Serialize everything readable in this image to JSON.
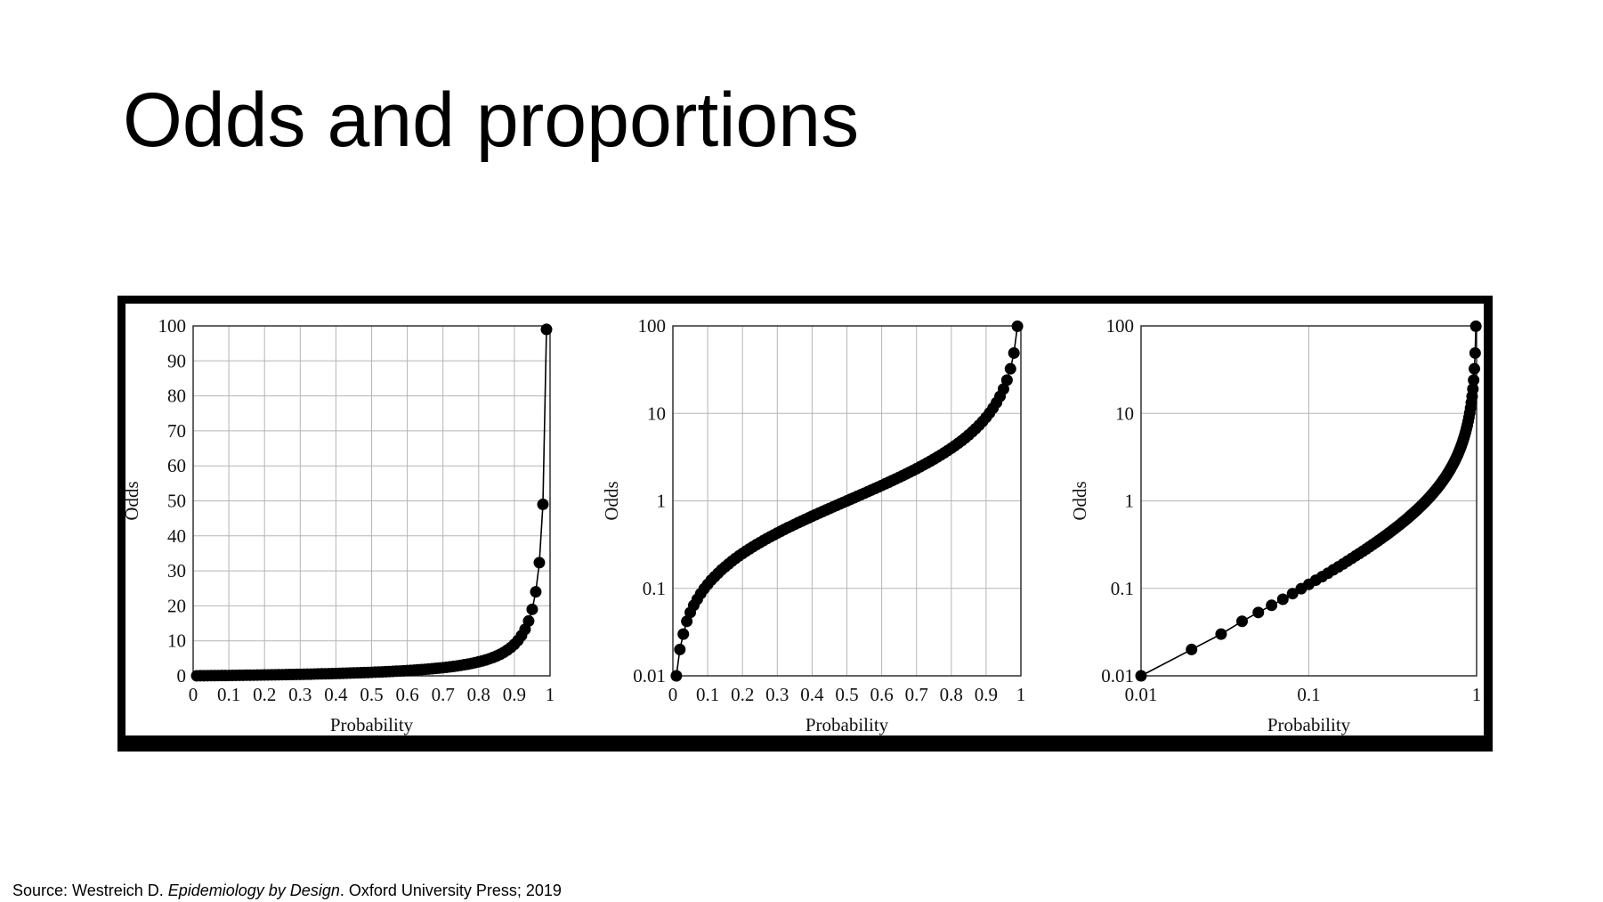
{
  "slide": {
    "title": "Odds and proportions"
  },
  "source": {
    "prefix": "Source: Westreich D. ",
    "book": "Epidemiology by Design",
    "suffix": ". Oxford University Press; 2019"
  },
  "chart_data": [
    {
      "type": "scatter",
      "xlabel": "Probability",
      "ylabel": "Odds",
      "xlim": [
        0,
        1
      ],
      "ylim": [
        0,
        100
      ],
      "yscale": "linear",
      "xscale": "linear",
      "grid": true,
      "xticks": [
        0,
        0.1,
        0.2,
        0.3,
        0.4,
        0.5,
        0.6,
        0.7,
        0.8,
        0.9,
        1
      ],
      "xtick_labels": [
        "0",
        "0.1",
        "0.2",
        "0.3",
        "0.4",
        "0.5",
        "0.6",
        "0.7",
        "0.8",
        "0.9",
        "1"
      ],
      "yticks": [
        0,
        10,
        20,
        30,
        40,
        50,
        60,
        70,
        80,
        90,
        100
      ],
      "ytick_labels": [
        "0",
        "10",
        "20",
        "30",
        "40",
        "50",
        "60",
        "70",
        "80",
        "90",
        "100"
      ],
      "series": [
        {
          "x": [
            0.01,
            0.02,
            0.03,
            0.04,
            0.05,
            0.06,
            0.07,
            0.08,
            0.09,
            0.1,
            0.11,
            0.12,
            0.13,
            0.14,
            0.15,
            0.16,
            0.17,
            0.18,
            0.19,
            0.2,
            0.21,
            0.22,
            0.23,
            0.24,
            0.25,
            0.26,
            0.27,
            0.28,
            0.29,
            0.3,
            0.31,
            0.32,
            0.33,
            0.34,
            0.35,
            0.36,
            0.37,
            0.38,
            0.39,
            0.4,
            0.41,
            0.42,
            0.43,
            0.44,
            0.45,
            0.46,
            0.47,
            0.48,
            0.49,
            0.5,
            0.51,
            0.52,
            0.53,
            0.54,
            0.55,
            0.56,
            0.57,
            0.58,
            0.59,
            0.6,
            0.61,
            0.62,
            0.63,
            0.64,
            0.65,
            0.66,
            0.67,
            0.68,
            0.69,
            0.7,
            0.71,
            0.72,
            0.73,
            0.74,
            0.75,
            0.76,
            0.77,
            0.78,
            0.79,
            0.8,
            0.81,
            0.82,
            0.83,
            0.84,
            0.85,
            0.86,
            0.87,
            0.88,
            0.89,
            0.9,
            0.91,
            0.92,
            0.93,
            0.94,
            0.95,
            0.96,
            0.97,
            0.98,
            0.99
          ],
          "y": [
            0.01,
            0.02,
            0.03,
            0.042,
            0.053,
            0.064,
            0.075,
            0.087,
            0.099,
            0.111,
            0.124,
            0.136,
            0.149,
            0.163,
            0.176,
            0.19,
            0.205,
            0.22,
            0.235,
            0.25,
            0.266,
            0.282,
            0.299,
            0.316,
            0.333,
            0.351,
            0.37,
            0.389,
            0.408,
            0.429,
            0.449,
            0.471,
            0.493,
            0.515,
            0.538,
            0.563,
            0.587,
            0.613,
            0.639,
            0.667,
            0.695,
            0.724,
            0.754,
            0.786,
            0.818,
            0.852,
            0.887,
            0.923,
            0.961,
            1.0,
            1.041,
            1.083,
            1.128,
            1.174,
            1.222,
            1.273,
            1.326,
            1.381,
            1.439,
            1.5,
            1.564,
            1.632,
            1.703,
            1.778,
            1.857,
            1.941,
            2.03,
            2.125,
            2.226,
            2.333,
            2.448,
            2.571,
            2.704,
            2.846,
            3.0,
            3.167,
            3.348,
            3.545,
            3.762,
            4.0,
            4.263,
            4.556,
            4.882,
            5.25,
            5.667,
            6.143,
            6.692,
            7.333,
            8.091,
            9.0,
            10.111,
            11.5,
            13.286,
            15.667,
            19.0,
            24.0,
            32.333,
            49.0,
            99.0
          ]
        }
      ]
    },
    {
      "type": "scatter",
      "xlabel": "Probability",
      "ylabel": "Odds",
      "xlim": [
        0,
        1
      ],
      "ylim": [
        0.01,
        100
      ],
      "yscale": "log",
      "xscale": "linear",
      "grid": true,
      "xticks": [
        0,
        0.1,
        0.2,
        0.3,
        0.4,
        0.5,
        0.6,
        0.7,
        0.8,
        0.9,
        1
      ],
      "xtick_labels": [
        "0",
        "0.1",
        "0.2",
        "0.3",
        "0.4",
        "0.5",
        "0.6",
        "0.7",
        "0.8",
        "0.9",
        "1"
      ],
      "yticks": [
        0.01,
        0.1,
        1,
        10,
        100
      ],
      "ytick_labels": [
        "0.01",
        "0.1",
        "1",
        "10",
        "100"
      ],
      "series": [
        {
          "x": [
            0.01,
            0.02,
            0.03,
            0.04,
            0.05,
            0.06,
            0.07,
            0.08,
            0.09,
            0.1,
            0.11,
            0.12,
            0.13,
            0.14,
            0.15,
            0.16,
            0.17,
            0.18,
            0.19,
            0.2,
            0.21,
            0.22,
            0.23,
            0.24,
            0.25,
            0.26,
            0.27,
            0.28,
            0.29,
            0.3,
            0.31,
            0.32,
            0.33,
            0.34,
            0.35,
            0.36,
            0.37,
            0.38,
            0.39,
            0.4,
            0.41,
            0.42,
            0.43,
            0.44,
            0.45,
            0.46,
            0.47,
            0.48,
            0.49,
            0.5,
            0.51,
            0.52,
            0.53,
            0.54,
            0.55,
            0.56,
            0.57,
            0.58,
            0.59,
            0.6,
            0.61,
            0.62,
            0.63,
            0.64,
            0.65,
            0.66,
            0.67,
            0.68,
            0.69,
            0.7,
            0.71,
            0.72,
            0.73,
            0.74,
            0.75,
            0.76,
            0.77,
            0.78,
            0.79,
            0.8,
            0.81,
            0.82,
            0.83,
            0.84,
            0.85,
            0.86,
            0.87,
            0.88,
            0.89,
            0.9,
            0.91,
            0.92,
            0.93,
            0.94,
            0.95,
            0.96,
            0.97,
            0.98,
            0.99
          ],
          "y": [
            0.01,
            0.02,
            0.03,
            0.042,
            0.053,
            0.064,
            0.075,
            0.087,
            0.099,
            0.111,
            0.124,
            0.136,
            0.149,
            0.163,
            0.176,
            0.19,
            0.205,
            0.22,
            0.235,
            0.25,
            0.266,
            0.282,
            0.299,
            0.316,
            0.333,
            0.351,
            0.37,
            0.389,
            0.408,
            0.429,
            0.449,
            0.471,
            0.493,
            0.515,
            0.538,
            0.563,
            0.587,
            0.613,
            0.639,
            0.667,
            0.695,
            0.724,
            0.754,
            0.786,
            0.818,
            0.852,
            0.887,
            0.923,
            0.961,
            1.0,
            1.041,
            1.083,
            1.128,
            1.174,
            1.222,
            1.273,
            1.326,
            1.381,
            1.439,
            1.5,
            1.564,
            1.632,
            1.703,
            1.778,
            1.857,
            1.941,
            2.03,
            2.125,
            2.226,
            2.333,
            2.448,
            2.571,
            2.704,
            2.846,
            3.0,
            3.167,
            3.348,
            3.545,
            3.762,
            4.0,
            4.263,
            4.556,
            4.882,
            5.25,
            5.667,
            6.143,
            6.692,
            7.333,
            8.091,
            9.0,
            10.111,
            11.5,
            13.286,
            15.667,
            19.0,
            24.0,
            32.333,
            49.0,
            99.0
          ]
        }
      ]
    },
    {
      "type": "scatter",
      "xlabel": "Probability",
      "ylabel": "Odds",
      "xlim": [
        0.01,
        1
      ],
      "ylim": [
        0.01,
        100
      ],
      "yscale": "log",
      "xscale": "log",
      "grid": true,
      "xticks": [
        0.01,
        0.1,
        1
      ],
      "xtick_labels": [
        "0.01",
        "0.1",
        "1"
      ],
      "yticks": [
        0.01,
        0.1,
        1,
        10,
        100
      ],
      "ytick_labels": [
        "0.01",
        "0.1",
        "1",
        "10",
        "100"
      ],
      "series": [
        {
          "x": [
            0.01,
            0.02,
            0.03,
            0.04,
            0.05,
            0.06,
            0.07,
            0.08,
            0.09,
            0.1,
            0.11,
            0.12,
            0.13,
            0.14,
            0.15,
            0.16,
            0.17,
            0.18,
            0.19,
            0.2,
            0.21,
            0.22,
            0.23,
            0.24,
            0.25,
            0.26,
            0.27,
            0.28,
            0.29,
            0.3,
            0.31,
            0.32,
            0.33,
            0.34,
            0.35,
            0.36,
            0.37,
            0.38,
            0.39,
            0.4,
            0.41,
            0.42,
            0.43,
            0.44,
            0.45,
            0.46,
            0.47,
            0.48,
            0.49,
            0.5,
            0.51,
            0.52,
            0.53,
            0.54,
            0.55,
            0.56,
            0.57,
            0.58,
            0.59,
            0.6,
            0.61,
            0.62,
            0.63,
            0.64,
            0.65,
            0.66,
            0.67,
            0.68,
            0.69,
            0.7,
            0.71,
            0.72,
            0.73,
            0.74,
            0.75,
            0.76,
            0.77,
            0.78,
            0.79,
            0.8,
            0.81,
            0.82,
            0.83,
            0.84,
            0.85,
            0.86,
            0.87,
            0.88,
            0.89,
            0.9,
            0.91,
            0.92,
            0.93,
            0.94,
            0.95,
            0.96,
            0.97,
            0.98,
            0.99
          ],
          "y": [
            0.01,
            0.02,
            0.03,
            0.042,
            0.053,
            0.064,
            0.075,
            0.087,
            0.099,
            0.111,
            0.124,
            0.136,
            0.149,
            0.163,
            0.176,
            0.19,
            0.205,
            0.22,
            0.235,
            0.25,
            0.266,
            0.282,
            0.299,
            0.316,
            0.333,
            0.351,
            0.37,
            0.389,
            0.408,
            0.429,
            0.449,
            0.471,
            0.493,
            0.515,
            0.538,
            0.563,
            0.587,
            0.613,
            0.639,
            0.667,
            0.695,
            0.724,
            0.754,
            0.786,
            0.818,
            0.852,
            0.887,
            0.923,
            0.961,
            1.0,
            1.041,
            1.083,
            1.128,
            1.174,
            1.222,
            1.273,
            1.326,
            1.381,
            1.439,
            1.5,
            1.564,
            1.632,
            1.703,
            1.778,
            1.857,
            1.941,
            2.03,
            2.125,
            2.226,
            2.333,
            2.448,
            2.571,
            2.704,
            2.846,
            3.0,
            3.167,
            3.348,
            3.545,
            3.762,
            4.0,
            4.263,
            4.556,
            4.882,
            5.25,
            5.667,
            6.143,
            6.692,
            7.333,
            8.091,
            9.0,
            10.111,
            11.5,
            13.286,
            15.667,
            19.0,
            24.0,
            32.333,
            49.0,
            99.0
          ]
        }
      ]
    }
  ]
}
